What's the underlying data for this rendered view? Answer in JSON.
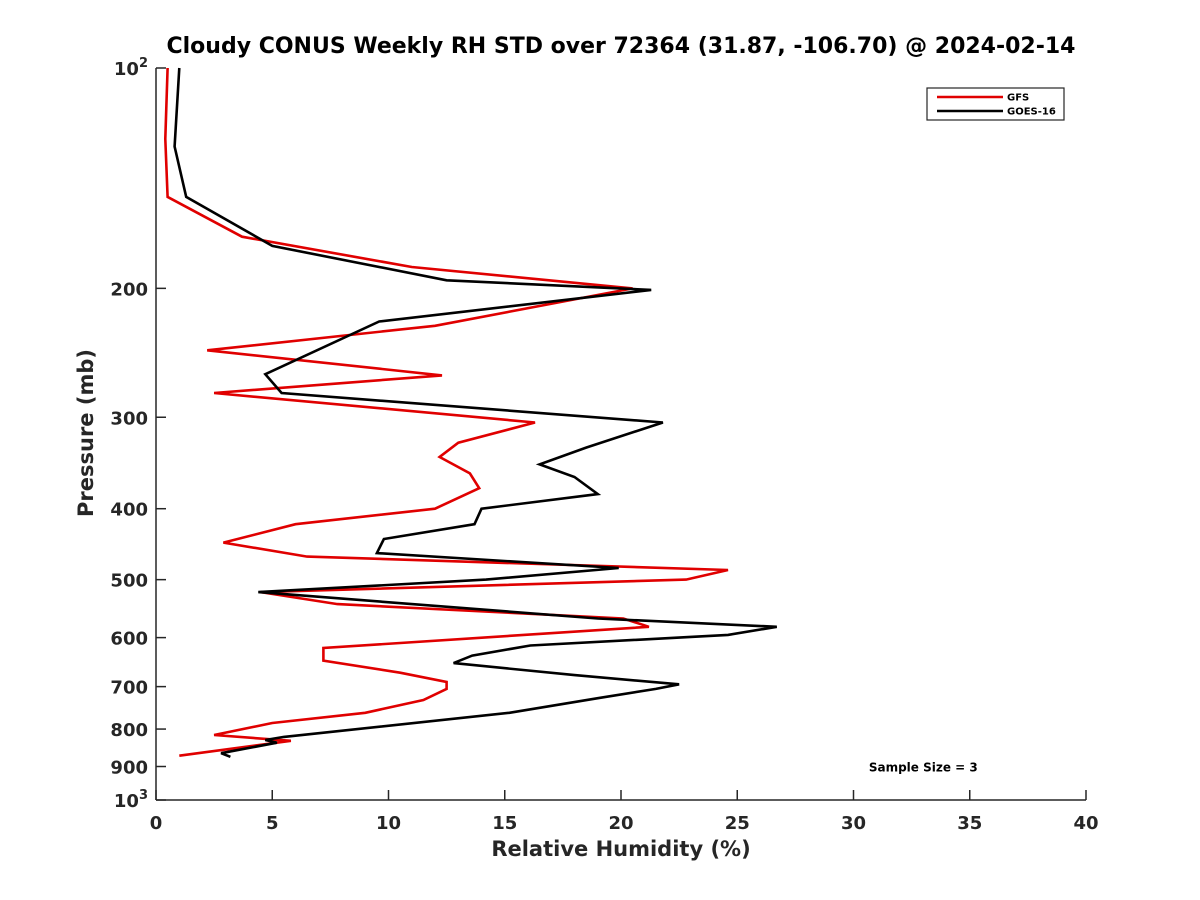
{
  "chart_data": {
    "type": "line",
    "title": "Cloudy CONUS Weekly RH STD over 72364 (31.87, -106.70) @ 2024-02-14",
    "xlabel": "Relative Humidity (%)",
    "ylabel": "Pressure (mb)",
    "xlim": [
      0,
      40
    ],
    "ylim": [
      100,
      1000
    ],
    "yscale": "log",
    "y_reversed": true,
    "x_ticks": [
      0,
      5,
      10,
      15,
      20,
      25,
      30,
      35,
      40
    ],
    "x_tick_labels": [
      "0",
      "5",
      "10",
      "15",
      "20",
      "25",
      "30",
      "35",
      "40"
    ],
    "y_ticks": [
      100,
      200,
      300,
      400,
      500,
      600,
      700,
      800,
      900,
      1000
    ],
    "y_tick_labels": [
      {
        "base": "10",
        "exp": "2"
      },
      {
        "base": "200",
        "exp": ""
      },
      {
        "base": "300",
        "exp": ""
      },
      {
        "base": "400",
        "exp": ""
      },
      {
        "base": "500",
        "exp": ""
      },
      {
        "base": "600",
        "exp": ""
      },
      {
        "base": "700",
        "exp": ""
      },
      {
        "base": "800",
        "exp": ""
      },
      {
        "base": "900",
        "exp": ""
      },
      {
        "base": "10",
        "exp": "3"
      }
    ],
    "grid": false,
    "legend_position": "top-right",
    "series": [
      {
        "name": "GFS",
        "color": "#e00000",
        "points": [
          [
            0.5,
            100
          ],
          [
            0.4,
            125
          ],
          [
            0.5,
            150
          ],
          [
            3.7,
            170
          ],
          [
            11.0,
            187
          ],
          [
            20.5,
            200
          ],
          [
            12.0,
            225
          ],
          [
            2.2,
            243
          ],
          [
            12.3,
            263
          ],
          [
            2.5,
            278
          ],
          [
            16.3,
            305
          ],
          [
            13.0,
            325
          ],
          [
            12.2,
            340
          ],
          [
            13.5,
            358
          ],
          [
            13.9,
            375
          ],
          [
            12.0,
            400
          ],
          [
            6.0,
            420
          ],
          [
            2.9,
            445
          ],
          [
            6.5,
            465
          ],
          [
            24.6,
            485
          ],
          [
            22.8,
            500
          ],
          [
            4.5,
            520
          ],
          [
            7.8,
            540
          ],
          [
            20.1,
            565
          ],
          [
            21.2,
            580
          ],
          [
            7.2,
            620
          ],
          [
            7.2,
            645
          ],
          [
            10.5,
            670
          ],
          [
            12.5,
            690
          ],
          [
            12.5,
            705
          ],
          [
            11.5,
            730
          ],
          [
            9.0,
            760
          ],
          [
            5.0,
            785
          ],
          [
            2.5,
            815
          ],
          [
            5.8,
            830
          ],
          [
            1.0,
            870
          ]
        ]
      },
      {
        "name": "GOES-16",
        "color": "#000000",
        "points": [
          [
            1.0,
            100
          ],
          [
            0.8,
            128
          ],
          [
            1.3,
            150
          ],
          [
            5.0,
            175
          ],
          [
            12.5,
            195
          ],
          [
            21.3,
            201
          ],
          [
            9.6,
            222
          ],
          [
            4.7,
            262
          ],
          [
            5.4,
            278
          ],
          [
            21.8,
            305
          ],
          [
            18.5,
            330
          ],
          [
            16.5,
            348
          ],
          [
            18.0,
            362
          ],
          [
            19.0,
            382
          ],
          [
            14.0,
            400
          ],
          [
            13.7,
            420
          ],
          [
            9.8,
            440
          ],
          [
            9.5,
            460
          ],
          [
            19.9,
            482
          ],
          [
            14.2,
            500
          ],
          [
            4.4,
            520
          ],
          [
            19.0,
            565
          ],
          [
            26.7,
            580
          ],
          [
            24.6,
            595
          ],
          [
            16.1,
            615
          ],
          [
            13.6,
            635
          ],
          [
            12.8,
            650
          ],
          [
            18.0,
            675
          ],
          [
            22.5,
            695
          ],
          [
            21.5,
            705
          ],
          [
            19.1,
            725
          ],
          [
            15.2,
            760
          ],
          [
            5.5,
            820
          ],
          [
            4.7,
            828
          ],
          [
            5.2,
            835
          ],
          [
            2.8,
            863
          ],
          [
            3.2,
            873
          ]
        ]
      }
    ],
    "annotations": [
      {
        "text": "Sample Size = 3",
        "x": 33,
        "y": 900
      }
    ]
  }
}
